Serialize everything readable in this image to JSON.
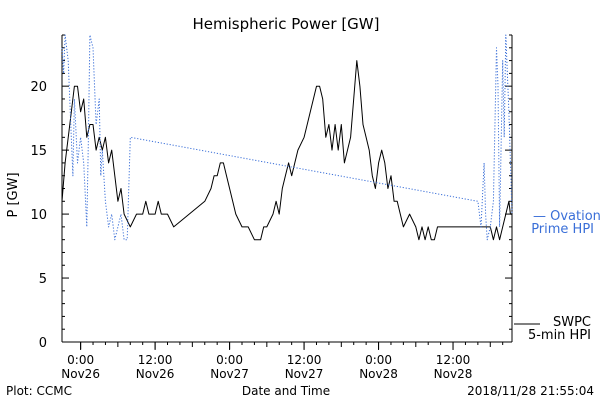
{
  "chart_data": {
    "type": "line",
    "title": "Hemispheric Power [GW]",
    "xlabel": "Date and Time",
    "ylabel": "P [GW]",
    "xlim": [
      "2018-11-25T21:00",
      "2018-11-28T21:30"
    ],
    "ylim": [
      0,
      24
    ],
    "yticks": [
      0,
      5,
      10,
      15,
      20
    ],
    "xticks": [
      {
        "t": "2018-11-26T00:00",
        "line1": "0:00",
        "line2": "Nov26"
      },
      {
        "t": "2018-11-26T12:00",
        "line1": "12:00",
        "line2": "Nov26"
      },
      {
        "t": "2018-11-27T00:00",
        "line1": "0:00",
        "line2": "Nov27"
      },
      {
        "t": "2018-11-27T12:00",
        "line1": "12:00",
        "line2": "Nov27"
      },
      {
        "t": "2018-11-28T00:00",
        "line1": "0:00",
        "line2": "Nov28"
      },
      {
        "t": "2018-11-28T12:00",
        "line1": "12:00",
        "line2": "Nov28"
      }
    ],
    "grid": false,
    "legend": [
      {
        "label_line1": "— Ovation",
        "label_line2": "Prime HPI",
        "color": "#3a6fd8",
        "style": "dotted"
      },
      {
        "label_line1": "SWPC",
        "label_line2": "5-min HPI",
        "color": "#000000",
        "style": "solid"
      }
    ],
    "series": [
      {
        "name": "SWPC 5-min HPI",
        "color": "#000000",
        "style": "solid",
        "points": [
          [
            "2018-11-25T21:00",
            11
          ],
          [
            "2018-11-25T21:30",
            14
          ],
          [
            "2018-11-25T22:15",
            17
          ],
          [
            "2018-11-25T23:00",
            20
          ],
          [
            "2018-11-25T23:30",
            20
          ],
          [
            "2018-11-26T00:00",
            18
          ],
          [
            "2018-11-26T00:30",
            19
          ],
          [
            "2018-11-26T01:00",
            16
          ],
          [
            "2018-11-26T01:30",
            17
          ],
          [
            "2018-11-26T02:00",
            17
          ],
          [
            "2018-11-26T02:30",
            15
          ],
          [
            "2018-11-26T03:00",
            16
          ],
          [
            "2018-11-26T03:30",
            15
          ],
          [
            "2018-11-26T04:00",
            16
          ],
          [
            "2018-11-26T04:30",
            14
          ],
          [
            "2018-11-26T05:00",
            15
          ],
          [
            "2018-11-26T05:30",
            13
          ],
          [
            "2018-11-26T06:00",
            11
          ],
          [
            "2018-11-26T06:30",
            12
          ],
          [
            "2018-11-26T07:00",
            10
          ],
          [
            "2018-11-26T08:00",
            9
          ],
          [
            "2018-11-26T09:00",
            10
          ],
          [
            "2018-11-26T10:00",
            10
          ],
          [
            "2018-11-26T10:30",
            11
          ],
          [
            "2018-11-26T11:00",
            10
          ],
          [
            "2018-11-26T12:00",
            10
          ],
          [
            "2018-11-26T12:30",
            11
          ],
          [
            "2018-11-26T13:00",
            10
          ],
          [
            "2018-11-26T14:00",
            10
          ],
          [
            "2018-11-26T15:00",
            9
          ],
          [
            "2018-11-26T20:00",
            11
          ],
          [
            "2018-11-26T21:00",
            12
          ],
          [
            "2018-11-26T21:30",
            13
          ],
          [
            "2018-11-26T22:00",
            13
          ],
          [
            "2018-11-26T22:30",
            14
          ],
          [
            "2018-11-26T23:00",
            14
          ],
          [
            "2018-11-26T23:30",
            13
          ],
          [
            "2018-11-27T00:00",
            12
          ],
          [
            "2018-11-27T00:30",
            11
          ],
          [
            "2018-11-27T01:00",
            10
          ],
          [
            "2018-11-27T02:00",
            9
          ],
          [
            "2018-11-27T03:00",
            9
          ],
          [
            "2018-11-27T04:00",
            8
          ],
          [
            "2018-11-27T05:00",
            8
          ],
          [
            "2018-11-27T05:30",
            9
          ],
          [
            "2018-11-27T06:00",
            9
          ],
          [
            "2018-11-27T07:00",
            10
          ],
          [
            "2018-11-27T07:30",
            11
          ],
          [
            "2018-11-27T08:00",
            10
          ],
          [
            "2018-11-27T08:30",
            12
          ],
          [
            "2018-11-27T09:00",
            13
          ],
          [
            "2018-11-27T09:30",
            14
          ],
          [
            "2018-11-27T10:00",
            13
          ],
          [
            "2018-11-27T10:30",
            14
          ],
          [
            "2018-11-27T11:00",
            15
          ],
          [
            "2018-11-27T12:00",
            16
          ],
          [
            "2018-11-27T13:00",
            18
          ],
          [
            "2018-11-27T13:30",
            19
          ],
          [
            "2018-11-27T14:00",
            20
          ],
          [
            "2018-11-27T14:30",
            20
          ],
          [
            "2018-11-27T15:00",
            19
          ],
          [
            "2018-11-27T15:30",
            16
          ],
          [
            "2018-11-27T16:00",
            17
          ],
          [
            "2018-11-27T16:30",
            15
          ],
          [
            "2018-11-27T17:00",
            17
          ],
          [
            "2018-11-27T17:30",
            15
          ],
          [
            "2018-11-27T18:00",
            17
          ],
          [
            "2018-11-27T18:30",
            14
          ],
          [
            "2018-11-27T19:00",
            15
          ],
          [
            "2018-11-27T19:30",
            16
          ],
          [
            "2018-11-27T20:00",
            19
          ],
          [
            "2018-11-27T20:30",
            22
          ],
          [
            "2018-11-27T21:00",
            20
          ],
          [
            "2018-11-27T21:30",
            17
          ],
          [
            "2018-11-27T22:00",
            16
          ],
          [
            "2018-11-27T22:30",
            15
          ],
          [
            "2018-11-27T23:00",
            13
          ],
          [
            "2018-11-27T23:30",
            12
          ],
          [
            "2018-11-28T00:00",
            14
          ],
          [
            "2018-11-28T00:30",
            15
          ],
          [
            "2018-11-28T01:00",
            14
          ],
          [
            "2018-11-28T01:30",
            12
          ],
          [
            "2018-11-28T02:00",
            13
          ],
          [
            "2018-11-28T02:30",
            11
          ],
          [
            "2018-11-28T03:00",
            11
          ],
          [
            "2018-11-28T03:30",
            10
          ],
          [
            "2018-11-28T04:00",
            9
          ],
          [
            "2018-11-28T05:00",
            10
          ],
          [
            "2018-11-28T06:00",
            9
          ],
          [
            "2018-11-28T06:30",
            8
          ],
          [
            "2018-11-28T07:00",
            9
          ],
          [
            "2018-11-28T07:30",
            8
          ],
          [
            "2018-11-28T08:00",
            9
          ],
          [
            "2018-11-28T08:30",
            8
          ],
          [
            "2018-11-28T09:00",
            8
          ],
          [
            "2018-11-28T09:30",
            9
          ],
          [
            "2018-11-28T13:00",
            9
          ],
          [
            "2018-11-28T18:00",
            9
          ],
          [
            "2018-11-28T18:30",
            8
          ],
          [
            "2018-11-28T19:00",
            9
          ],
          [
            "2018-11-28T19:30",
            8
          ],
          [
            "2018-11-28T20:00",
            9
          ],
          [
            "2018-11-28T20:30",
            10
          ],
          [
            "2018-11-28T21:00",
            11
          ],
          [
            "2018-11-28T21:15",
            10
          ],
          [
            "2018-11-28T21:30",
            10
          ]
        ]
      },
      {
        "name": "Ovation Prime HPI",
        "color": "#3a6fd8",
        "style": "dotted",
        "points": [
          [
            "2018-11-25T21:00",
            23
          ],
          [
            "2018-11-25T21:15",
            21
          ],
          [
            "2018-11-25T21:30",
            24
          ],
          [
            "2018-11-25T22:00",
            22
          ],
          [
            "2018-11-25T22:30",
            16
          ],
          [
            "2018-11-25T22:45",
            13
          ],
          [
            "2018-11-25T23:00",
            19
          ],
          [
            "2018-11-25T23:30",
            14
          ],
          [
            "2018-11-26T00:00",
            16
          ],
          [
            "2018-11-26T00:30",
            14
          ],
          [
            "2018-11-26T01:00",
            9
          ],
          [
            "2018-11-26T01:15",
            16
          ],
          [
            "2018-11-26T01:30",
            24
          ],
          [
            "2018-11-26T02:00",
            23
          ],
          [
            "2018-11-26T02:30",
            17
          ],
          [
            "2018-11-26T03:00",
            19
          ],
          [
            "2018-11-26T03:15",
            13
          ],
          [
            "2018-11-26T03:30",
            15
          ],
          [
            "2018-11-26T04:00",
            11
          ],
          [
            "2018-11-26T04:30",
            9
          ],
          [
            "2018-11-26T05:00",
            10
          ],
          [
            "2018-11-26T05:30",
            8
          ],
          [
            "2018-11-26T06:00",
            9
          ],
          [
            "2018-11-26T06:30",
            10
          ],
          [
            "2018-11-26T07:00",
            8
          ],
          [
            "2018-11-26T07:30",
            8
          ],
          [
            "2018-11-26T08:00",
            16
          ],
          [
            "2018-11-28T16:00",
            11
          ],
          [
            "2018-11-28T16:30",
            9
          ],
          [
            "2018-11-28T17:00",
            14
          ],
          [
            "2018-11-28T17:15",
            10
          ],
          [
            "2018-11-28T17:30",
            8
          ],
          [
            "2018-11-28T18:00",
            9
          ],
          [
            "2018-11-28T18:30",
            11
          ],
          [
            "2018-11-28T19:00",
            23
          ],
          [
            "2018-11-28T19:15",
            20
          ],
          [
            "2018-11-28T19:30",
            9
          ],
          [
            "2018-11-28T20:00",
            22
          ],
          [
            "2018-11-28T20:15",
            16
          ],
          [
            "2018-11-28T20:30",
            24
          ],
          [
            "2018-11-28T21:00",
            18
          ],
          [
            "2018-11-28T21:30",
            10
          ]
        ]
      }
    ]
  },
  "footer": {
    "left": "Plot: CCMC",
    "right": "2018/11/28 21:55:04"
  }
}
